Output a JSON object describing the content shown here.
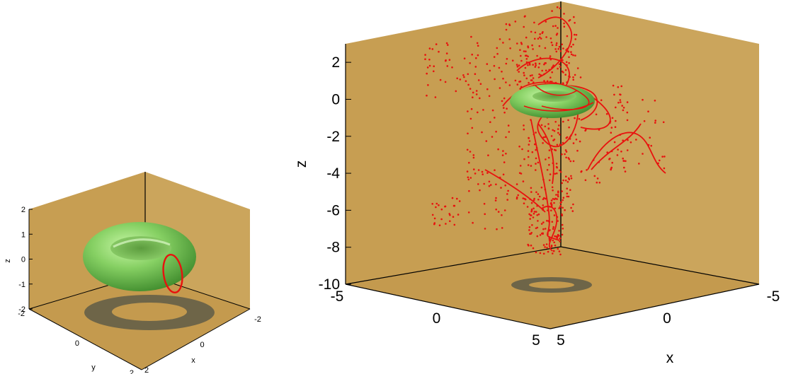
{
  "colors": {
    "back_wall": "#C79E52",
    "side_wall": "#CBA55C",
    "floor": "#C49A4E",
    "torus_light": "#B8F095",
    "torus_mid": "#7BC85A",
    "torus_dark": "#3F8A2E",
    "shadow": "#6E6548",
    "trajectory": "#E8120E",
    "axis": "#000000"
  },
  "chart_data": [
    {
      "type": "3d-surface",
      "surface": "torus",
      "series": [
        {
          "values": "green torus isosurface"
        },
        {
          "values": "red closed loop through torus tube"
        }
      ],
      "axes": {
        "x": {
          "label": "x",
          "ticks": [
            "2",
            "0",
            "-2"
          ],
          "lim": [
            -2,
            2
          ]
        },
        "y": {
          "label": "y",
          "ticks": [
            "-2",
            "0",
            "2"
          ],
          "lim": [
            -2,
            2
          ]
        },
        "z": {
          "label": "z",
          "ticks": [
            "2",
            "1",
            "0",
            "-1",
            "-2"
          ],
          "lim": [
            -2,
            2
          ]
        }
      },
      "projection": "floor shadow of torus"
    },
    {
      "type": "3d-surface",
      "surface": "torus",
      "series": [
        {
          "values": "green torus isosurface"
        },
        {
          "values": "red field-line trajectories (scatter of points)"
        }
      ],
      "axes": {
        "x": {
          "label": "x",
          "ticks": [
            "5",
            "0",
            "-5"
          ],
          "lim": [
            -5,
            5
          ]
        },
        "y": {
          "label": "",
          "ticks": [
            "-5",
            "0",
            "5"
          ],
          "lim": [
            -5,
            5
          ]
        },
        "z": {
          "label": "z",
          "ticks": [
            "2",
            "0",
            "-2",
            "-4",
            "-6",
            "-8",
            "-10"
          ],
          "lim": [
            -10,
            3
          ]
        }
      },
      "projection": "floor shadow of torus"
    }
  ]
}
